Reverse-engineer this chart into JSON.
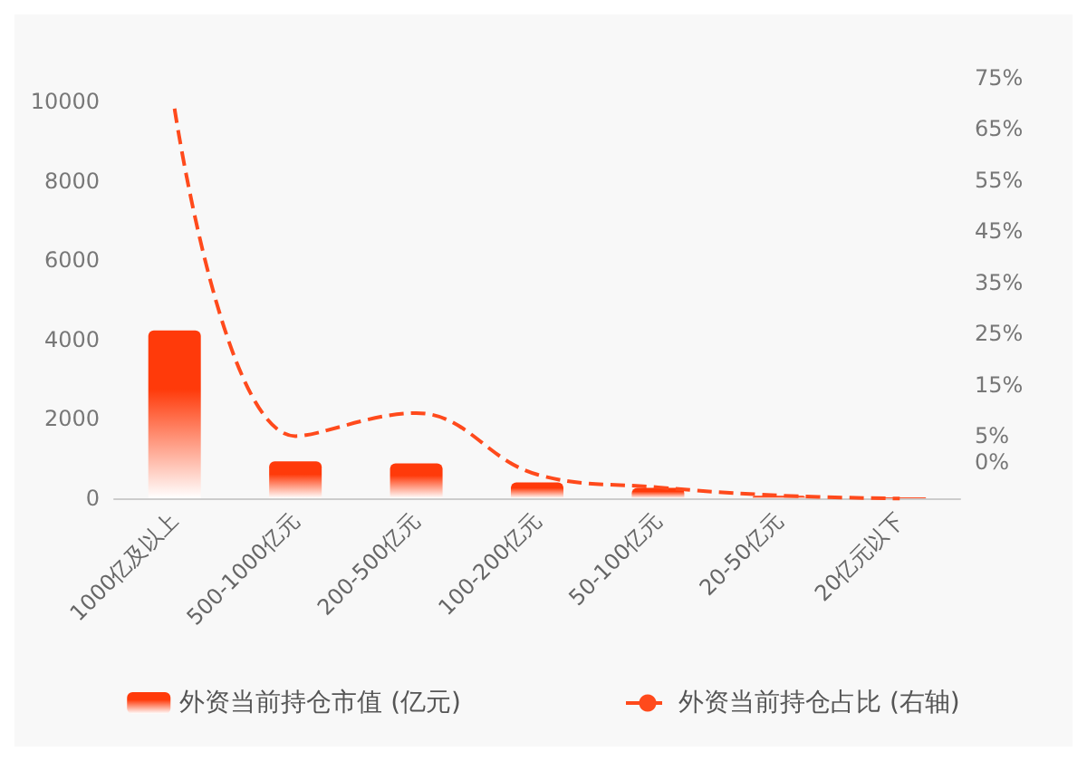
{
  "chart_data": {
    "type": "bar",
    "categories": [
      "1000亿及以上",
      "500-1000亿元",
      "200-500亿元",
      "100-200亿元",
      "50-100亿元",
      "20-50亿元",
      "20亿元以下"
    ],
    "series": [
      {
        "name": "外资当前持仓市值 (亿元)",
        "color": "#ff3a0a",
        "values": [
          4230,
          930,
          880,
          400,
          260,
          60,
          20
        ]
      },
      {
        "name": "外资当前持仓占比 (右轴)",
        "type": "line",
        "axis": "y2",
        "color": "#ff4a1c",
        "line_style": "dashed",
        "values": [
          69,
          5,
          9.5,
          -2.5,
          -5,
          -6.6,
          -7.2
        ]
      }
    ],
    "ylim": [
      0,
      10000
    ],
    "yticks": [
      0,
      2000,
      4000,
      6000,
      8000,
      10000
    ],
    "y2lim": [
      -7.5,
      75
    ],
    "y2ticks": [
      {
        "value": 0,
        "label": "0%"
      },
      {
        "value": 5,
        "label": "5%"
      },
      {
        "value": 15,
        "label": "15%"
      },
      {
        "value": 25,
        "label": "25%"
      },
      {
        "value": 35,
        "label": "35%"
      },
      {
        "value": 45,
        "label": "45%"
      },
      {
        "value": 55,
        "label": "55%"
      },
      {
        "value": 65,
        "label": "65%"
      },
      {
        "value": 75,
        "label": "75%"
      }
    ],
    "grid": false,
    "legend": "bottom",
    "marker": "none"
  }
}
